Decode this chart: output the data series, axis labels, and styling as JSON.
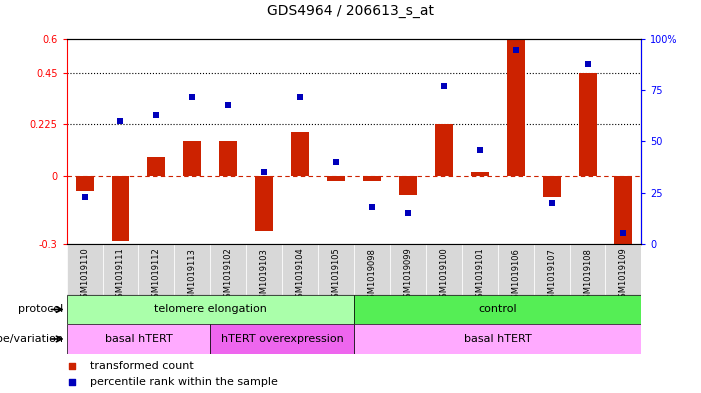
{
  "title": "GDS4964 / 206613_s_at",
  "samples": [
    "GSM1019110",
    "GSM1019111",
    "GSM1019112",
    "GSM1019113",
    "GSM1019102",
    "GSM1019103",
    "GSM1019104",
    "GSM1019105",
    "GSM1019098",
    "GSM1019099",
    "GSM1019100",
    "GSM1019101",
    "GSM1019106",
    "GSM1019107",
    "GSM1019108",
    "GSM1019109"
  ],
  "red_values": [
    -0.07,
    -0.29,
    0.08,
    0.15,
    0.15,
    -0.245,
    0.19,
    -0.025,
    -0.025,
    -0.085,
    0.225,
    0.015,
    0.6,
    -0.095,
    0.45,
    -0.32
  ],
  "blue_values": [
    23,
    60,
    63,
    72,
    68,
    35,
    72,
    40,
    18,
    15,
    77,
    46,
    95,
    20,
    88,
    5
  ],
  "ylim_left": [
    -0.3,
    0.6
  ],
  "ylim_right": [
    0,
    100
  ],
  "left_yticks": [
    -0.3,
    0,
    0.225,
    0.45,
    0.6
  ],
  "left_yticklabels": [
    "-0.3",
    "0",
    "0.225",
    "0.45",
    "0.6"
  ],
  "right_yticks": [
    0,
    25,
    50,
    75,
    100
  ],
  "right_yticklabels": [
    "0",
    "25",
    "50",
    "75",
    "100%"
  ],
  "dotted_lines": [
    0.45,
    0.225
  ],
  "protocol_groups": [
    {
      "label": "telomere elongation",
      "start": 0,
      "end": 8,
      "color": "#AAFFAA"
    },
    {
      "label": "control",
      "start": 8,
      "end": 16,
      "color": "#55EE55"
    }
  ],
  "genotype_groups": [
    {
      "label": "basal hTERT",
      "start": 0,
      "end": 4,
      "color": "#FFAAFF"
    },
    {
      "label": "hTERT overexpression",
      "start": 4,
      "end": 8,
      "color": "#EE66EE"
    },
    {
      "label": "basal hTERT",
      "start": 8,
      "end": 16,
      "color": "#FFAAFF"
    }
  ],
  "legend_red": "transformed count",
  "legend_blue": "percentile rank within the sample",
  "bar_color": "#CC2200",
  "dot_color": "#0000BB",
  "zero_line_color": "#CC2200",
  "protocol_label": "protocol",
  "genotype_label": "genotype/variation",
  "sample_bg": "#D8D8D8",
  "title_fontsize": 10,
  "axis_fontsize": 7,
  "label_fontsize": 8,
  "bar_width": 0.5
}
